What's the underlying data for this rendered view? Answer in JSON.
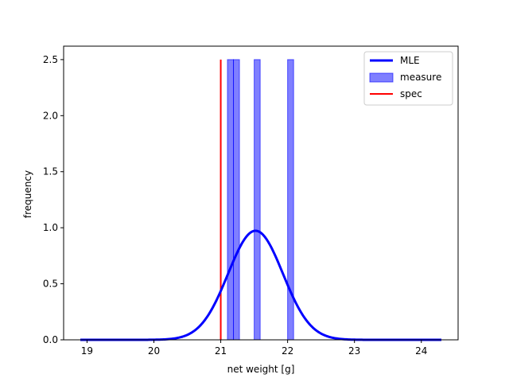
{
  "chart_data": {
    "type": "histogram+line",
    "title": "",
    "xlabel": "net weight [g]",
    "ylabel": "frequency",
    "xlim": [
      18.65,
      24.55
    ],
    "ylim": [
      0,
      2.62
    ],
    "x_ticks": [
      19,
      20,
      21,
      22,
      23,
      24
    ],
    "y_ticks": [
      0.0,
      0.5,
      1.0,
      1.5,
      2.0,
      2.5
    ],
    "x_tick_labels": [
      "19",
      "20",
      "21",
      "22",
      "23",
      "24"
    ],
    "y_tick_labels": [
      "0.0",
      "0.5",
      "1.0",
      "1.5",
      "2.0",
      "2.5"
    ],
    "grid": false,
    "legend": {
      "placement": "top-right",
      "entries": [
        {
          "label": "MLE",
          "color": "#0000ff",
          "kind": "line"
        },
        {
          "label": "measure",
          "color": "#0000ff",
          "kind": "patch"
        },
        {
          "label": "spec",
          "color": "#ff0000",
          "kind": "line"
        }
      ]
    },
    "series": [
      {
        "name": "MLE",
        "kind": "normal-curve",
        "color": "#0000ff",
        "mean": 21.52,
        "sigma": 0.41,
        "x_range": [
          18.9,
          24.3
        ]
      },
      {
        "name": "measure",
        "kind": "histogram",
        "color": "#0000ff",
        "bins": [
          {
            "x0": 21.1,
            "x1": 21.19,
            "height": 2.5
          },
          {
            "x0": 21.19,
            "x1": 21.28,
            "height": 2.5
          },
          {
            "x0": 21.5,
            "x1": 21.59,
            "height": 2.5
          },
          {
            "x0": 22.0,
            "x1": 22.09,
            "height": 2.5
          }
        ]
      },
      {
        "name": "spec",
        "kind": "vline",
        "color": "#ff0000",
        "x": 21.0,
        "y_range": [
          0,
          2.5
        ]
      }
    ]
  }
}
